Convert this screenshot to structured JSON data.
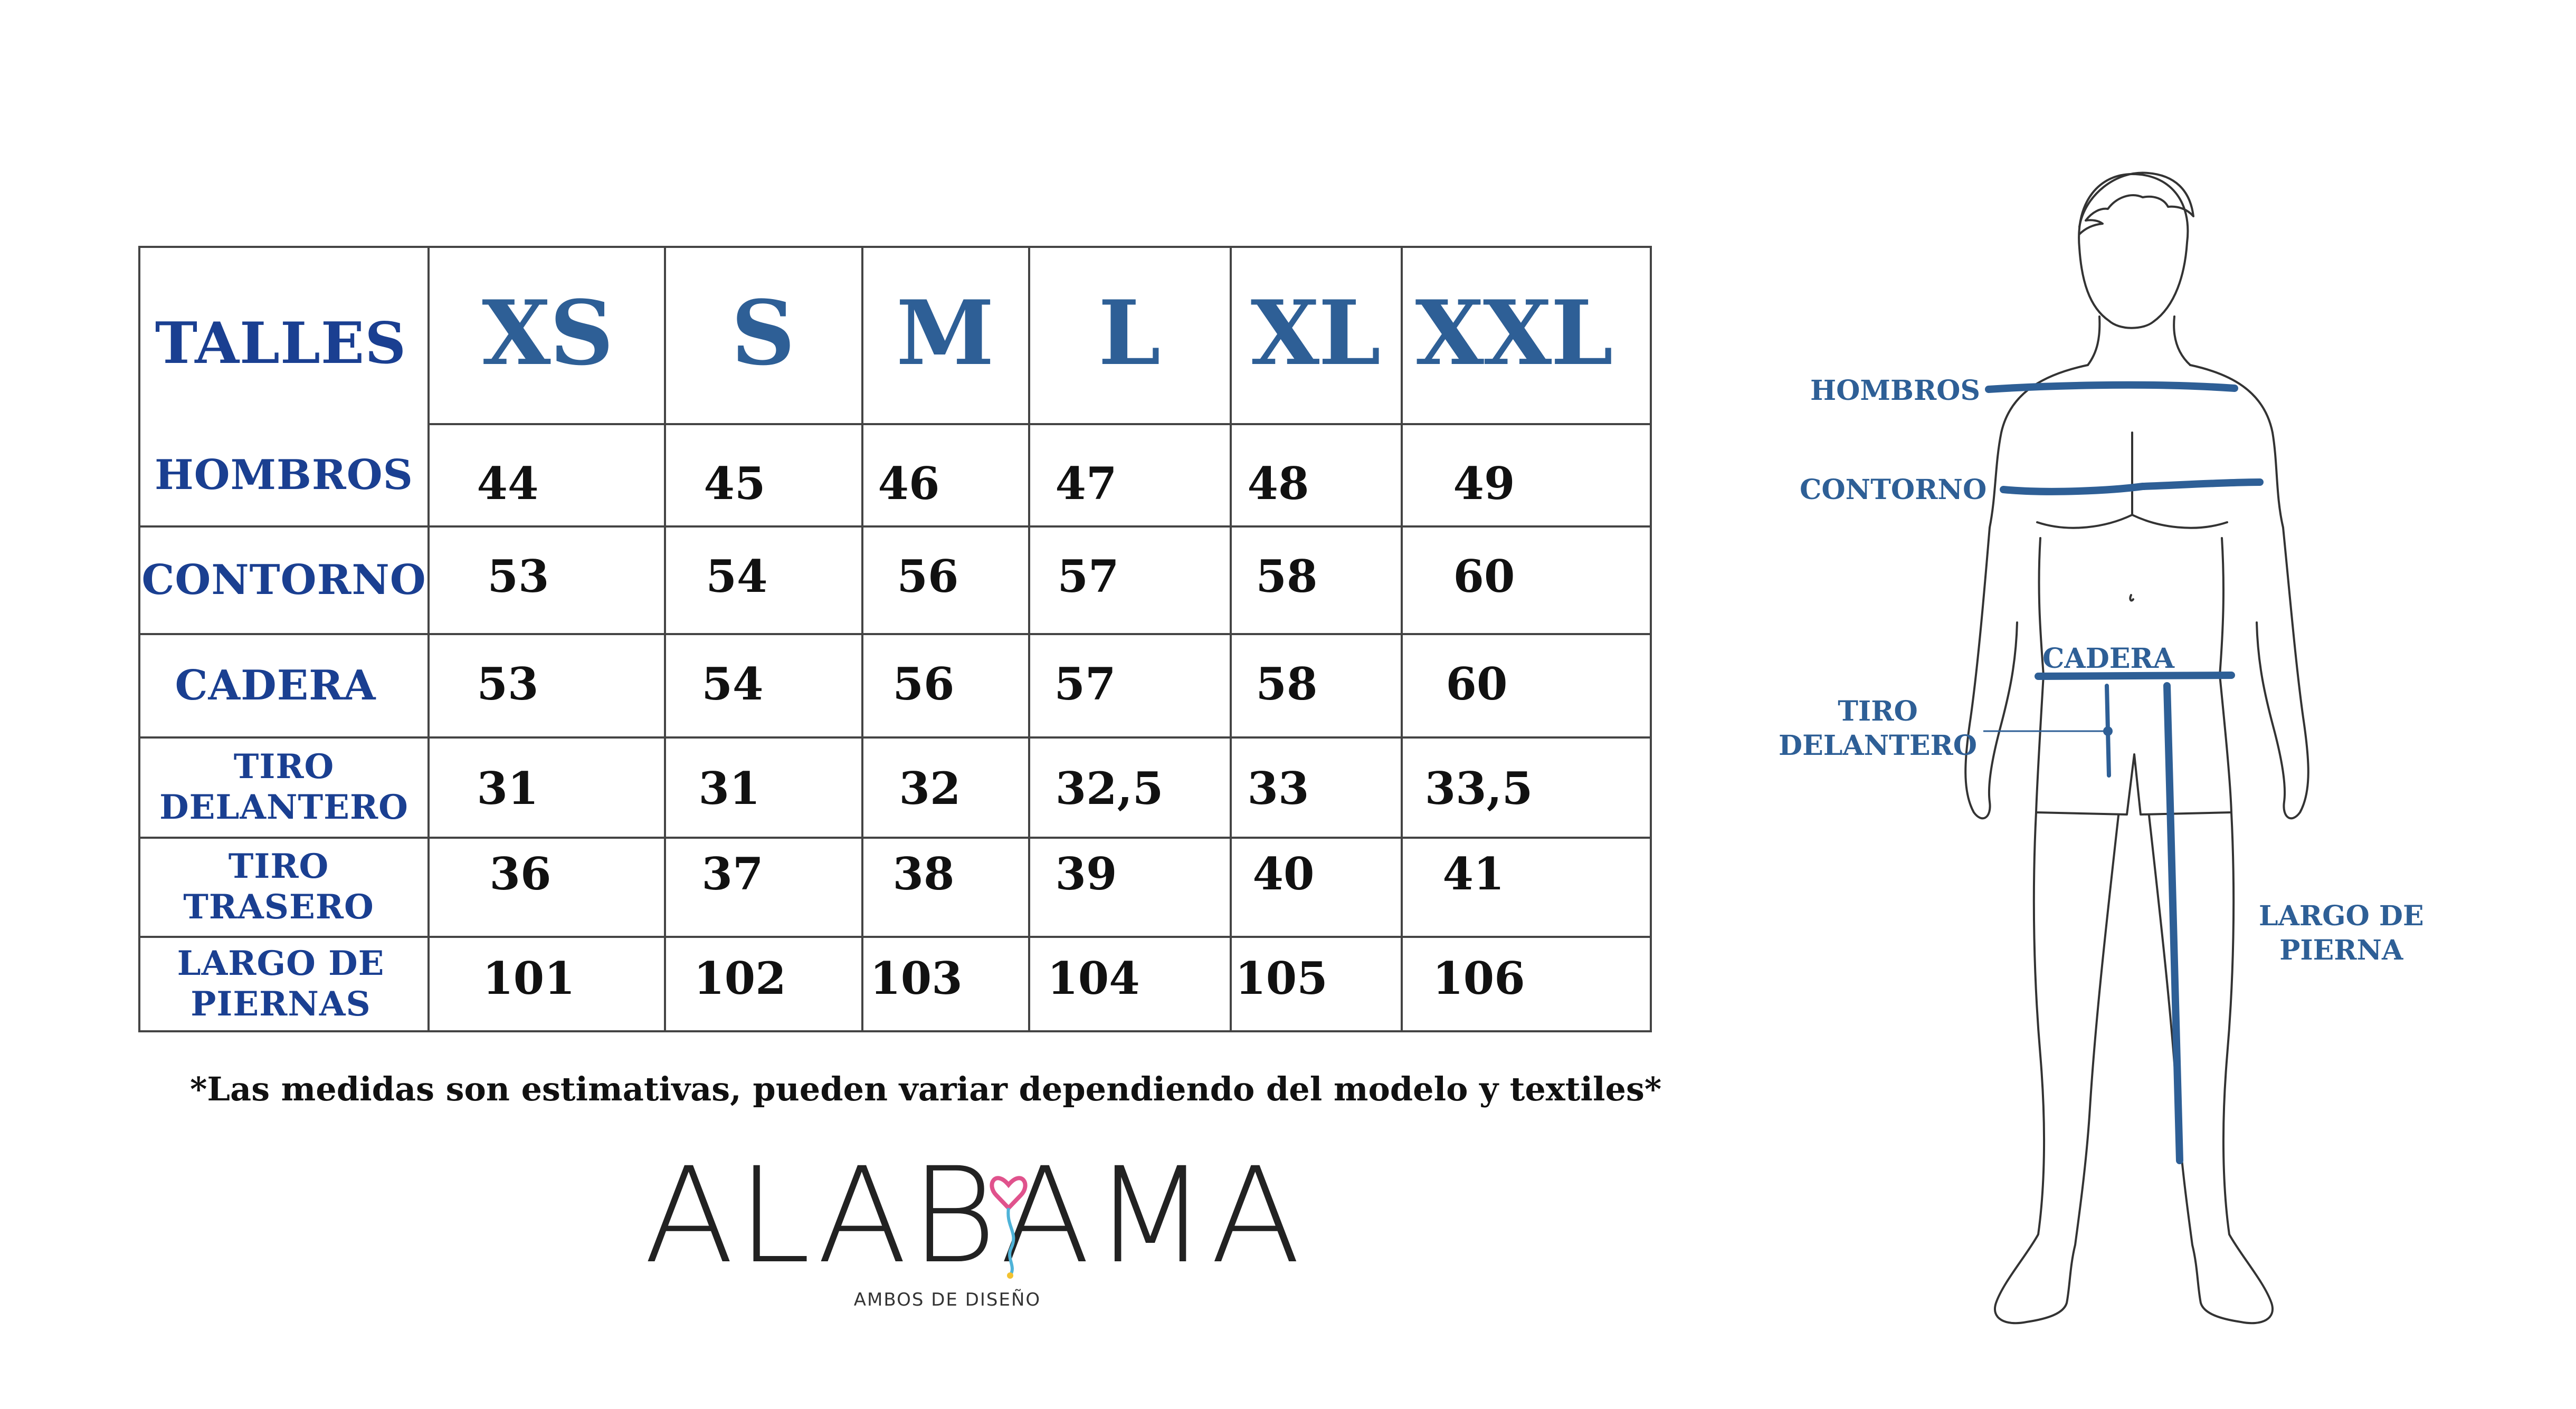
{
  "table": {
    "corner_label": "TALLES",
    "sizes": [
      "XS",
      "S",
      "M",
      "L",
      "XL",
      "XXL"
    ],
    "rows": [
      {
        "label": "HOMBROS",
        "values": [
          "44",
          "45",
          "46",
          "47",
          "48",
          "49"
        ]
      },
      {
        "label": "CONTORNO",
        "values": [
          "53",
          "54",
          "56",
          "57",
          "58",
          "60"
        ]
      },
      {
        "label": "CADERA",
        "values": [
          "53",
          "54",
          "56",
          "57",
          "58",
          "60"
        ]
      },
      {
        "label": "TIRO\nDELANTERO",
        "values": [
          "31",
          "31",
          "32",
          "32,5",
          "33",
          "33,5"
        ]
      },
      {
        "label": "TIRO\nTRASERO",
        "values": [
          "36",
          "37",
          "38",
          "39",
          "40",
          "41"
        ]
      },
      {
        "label": "LARGO DE\nPIERNAS",
        "values": [
          "101",
          "102",
          "103",
          "104",
          "105",
          "106"
        ]
      }
    ]
  },
  "disclaimer": "*Las medidas son estimativas, pueden variar dependiendo del modelo y textiles*",
  "logo": {
    "name": "ALABAMA",
    "tagline": "AMBOS DE DISEÑO"
  },
  "figure_labels": {
    "hombros": "HOMBROS",
    "contorno": "CONTORNO",
    "cadera": "CADERA",
    "tiro_delantero": "TIRO\nDELANTERO",
    "largo_pierna": "LARGO DE\nPIERNA"
  },
  "colors": {
    "measure_blue": "#2e5f96",
    "label_navy": "#1a3f91",
    "grid": "#444444"
  }
}
